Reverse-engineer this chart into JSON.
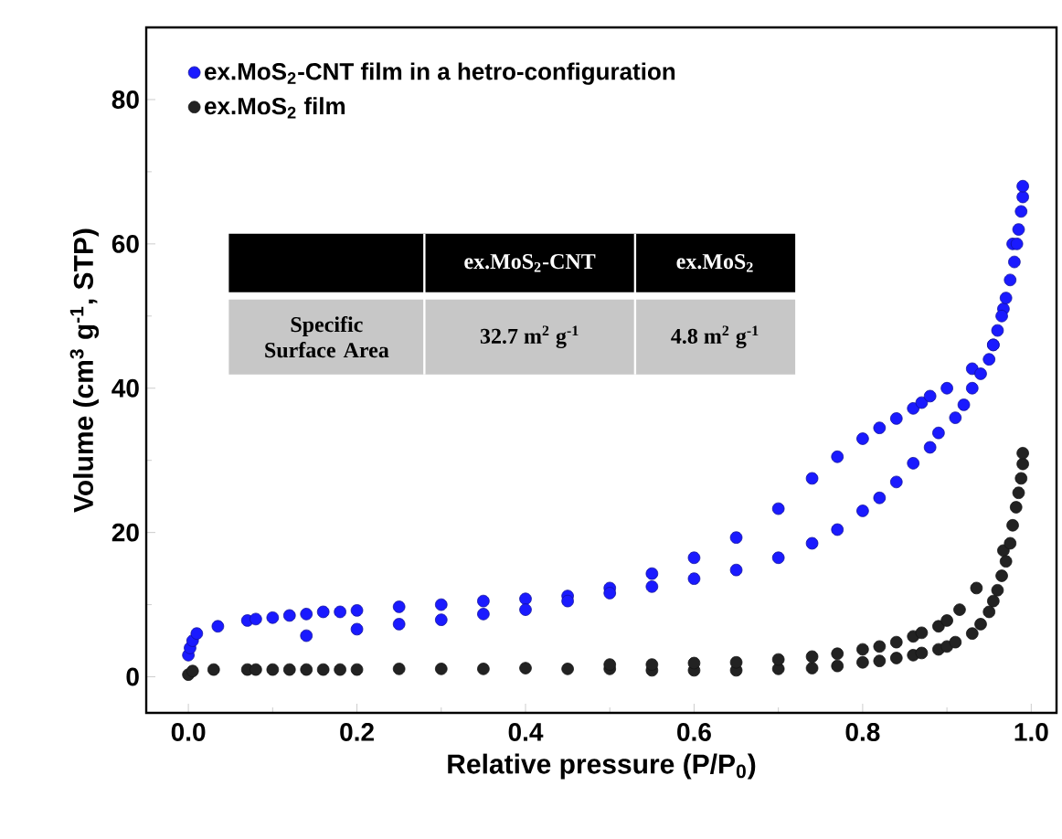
{
  "chart_data": {
    "type": "scatter",
    "xlabel": "Relative pressure (P/P$_{0}$)",
    "ylabel": "Volume (cm$^{3}$ g$^{-1}$, STP)",
    "xlim": [
      -0.05,
      1.03
    ],
    "ylim": [
      -5,
      90
    ],
    "xticks": [
      {
        "value": 0,
        "label": "0.0"
      },
      {
        "value": 0.2,
        "label": "0.2"
      },
      {
        "value": 0.4,
        "label": "0.4"
      },
      {
        "value": 0.6,
        "label": "0.6"
      },
      {
        "value": 0.8,
        "label": "0.8"
      },
      {
        "value": 1,
        "label": "1.0"
      }
    ],
    "yticks": [
      0,
      20,
      40,
      60,
      80
    ],
    "legend": "top left",
    "grid": false,
    "annotations": [
      "ex.MoS$_{2}$-CNT",
      "ex.MoS$_{2}$",
      "Specific Surface Area",
      "32.7  m$^{2}$ g$^{-1}$",
      "4.8  m$^{2}$ g$^{-1}$"
    ],
    "series": [
      {
        "name": "ex.MoS$_{2}$-CNT film in a hetro-configuration",
        "color": "#1a1aff",
        "x": [
          0.0,
          0.002,
          0.005,
          0.01,
          0.035,
          0.07,
          0.08,
          0.1,
          0.12,
          0.14,
          0.16,
          0.18,
          0.2,
          0.25,
          0.3,
          0.35,
          0.4,
          0.45,
          0.5,
          0.55,
          0.6,
          0.65,
          0.7,
          0.74,
          0.77,
          0.8,
          0.82,
          0.84,
          0.86,
          0.87,
          0.88,
          0.9,
          0.93,
          0.955,
          0.967,
          0.978,
          0.14,
          0.2,
          0.25,
          0.3,
          0.35,
          0.4,
          0.45,
          0.5,
          0.55,
          0.6,
          0.65,
          0.7,
          0.74,
          0.77,
          0.8,
          0.82,
          0.84,
          0.86,
          0.88,
          0.89,
          0.91,
          0.92,
          0.93,
          0.94,
          0.95,
          0.955,
          0.96,
          0.965,
          0.97,
          0.975,
          0.98,
          0.983,
          0.985,
          0.988,
          0.99,
          0.99
        ],
        "values": [
          3,
          4,
          5,
          6,
          7,
          7.8,
          8,
          8.2,
          8.5,
          8.7,
          9,
          9,
          9.2,
          9.7,
          10,
          10.5,
          10.8,
          11.2,
          12.3,
          14.3,
          16.5,
          19.3,
          23.3,
          27.5,
          30.5,
          33,
          34.5,
          35.8,
          37.2,
          38,
          38.9,
          40,
          42.7,
          46,
          51,
          60,
          5.7,
          6.6,
          7.3,
          7.9,
          8.7,
          9.3,
          10.5,
          11.6,
          12.5,
          13.6,
          14.8,
          16.5,
          18.5,
          20.4,
          23,
          24.8,
          27,
          29.6,
          31.8,
          33.8,
          35.9,
          37.7,
          40,
          42,
          44,
          46,
          48,
          50,
          52.5,
          55,
          57.5,
          60,
          62,
          64.5,
          66.5,
          68
        ]
      },
      {
        "name": "ex.MoS$_{2}$ film",
        "color": "#222222",
        "x": [
          0.0,
          0.005,
          0.03,
          0.07,
          0.08,
          0.1,
          0.12,
          0.14,
          0.16,
          0.18,
          0.2,
          0.25,
          0.3,
          0.35,
          0.4,
          0.45,
          0.5,
          0.5,
          0.55,
          0.55,
          0.6,
          0.6,
          0.65,
          0.65,
          0.7,
          0.7,
          0.74,
          0.74,
          0.77,
          0.77,
          0.8,
          0.8,
          0.82,
          0.82,
          0.84,
          0.84,
          0.86,
          0.86,
          0.87,
          0.87,
          0.89,
          0.89,
          0.9,
          0.9,
          0.91,
          0.915,
          0.93,
          0.935,
          0.94,
          0.95,
          0.955,
          0.96,
          0.965,
          0.967,
          0.97,
          0.975,
          0.978,
          0.982,
          0.985,
          0.988,
          0.99,
          0.99
        ],
        "values": [
          0.3,
          0.8,
          1,
          1,
          1,
          1,
          1,
          1,
          1,
          1,
          1,
          1.1,
          1.1,
          1.1,
          1.2,
          1.1,
          1.1,
          1.7,
          0.9,
          1.7,
          0.9,
          1.9,
          0.9,
          2.0,
          1.1,
          2.4,
          1.2,
          2.8,
          1.5,
          3.2,
          2,
          3.8,
          2.2,
          4.2,
          2.6,
          4.8,
          3,
          5.6,
          3.3,
          6.1,
          3.8,
          7.0,
          4.2,
          7.8,
          4.8,
          9.3,
          6,
          12.3,
          7.3,
          9,
          10.5,
          12,
          14,
          17.5,
          16,
          18.5,
          21,
          23.5,
          25.5,
          27.5,
          29.5,
          31
        ]
      }
    ]
  }
}
